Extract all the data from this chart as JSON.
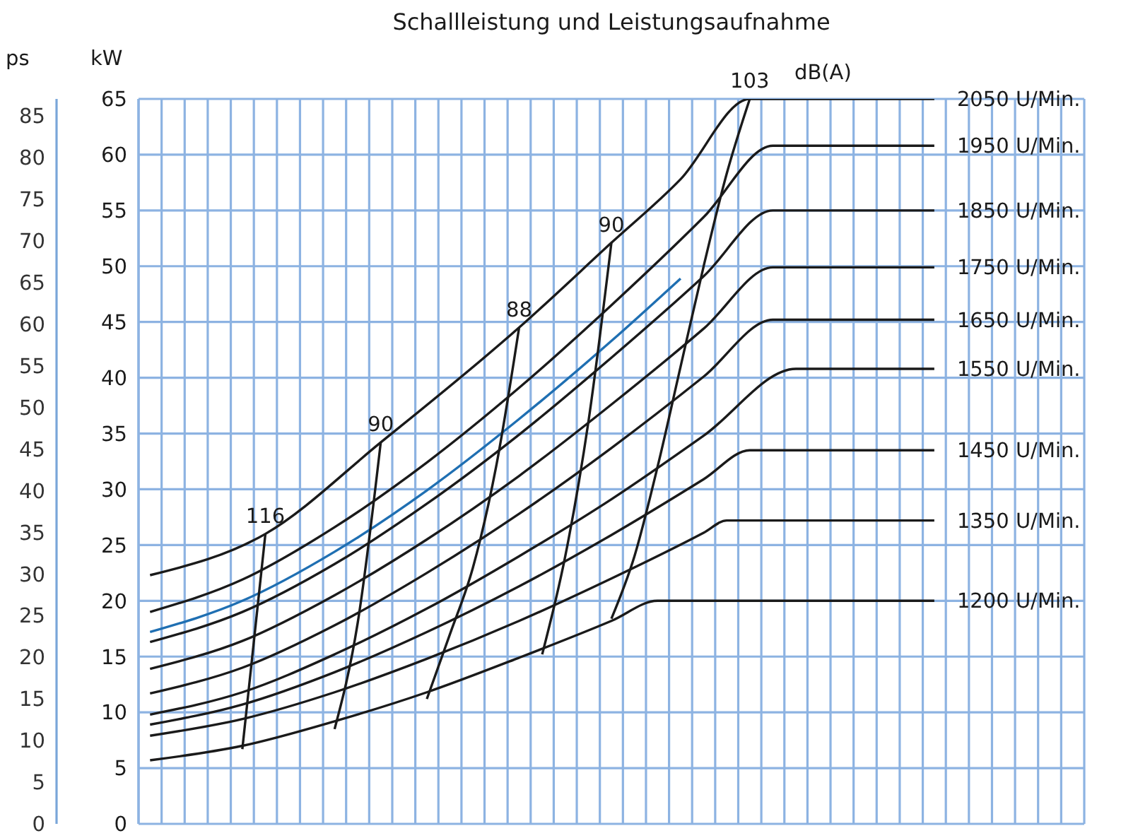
{
  "chart_data": {
    "type": "line",
    "title": "Schallleistung und Leistungsaufnahme",
    "ylabel": "kW",
    "y2label": "ps",
    "annotations": [
      "dB(A)"
    ],
    "categories": [
      null,
      null,
      null,
      null,
      null,
      null,
      null,
      null,
      null,
      null,
      null,
      null,
      null,
      null,
      null,
      null,
      null,
      null,
      null,
      null,
      null,
      null,
      null,
      null,
      null,
      null,
      null,
      null,
      null,
      null,
      null,
      null,
      null,
      null,
      null,
      null,
      null,
      null,
      null,
      null,
      null
    ],
    "series": [
      {
        "name": "2050 U/Min.",
        "color": "#1a1a1a",
        "values": [
          22.3,
          null,
          null,
          null,
          null,
          26,
          null,
          null,
          null,
          null,
          34.2,
          null,
          null,
          null,
          null,
          null,
          44.5,
          null,
          null,
          null,
          52.1,
          null,
          null,
          57.8,
          null,
          null,
          65,
          null,
          null,
          null,
          null,
          null,
          null,
          null,
          65,
          null,
          null,
          null,
          null,
          null,
          null
        ]
      },
      {
        "name": "1950 U/Min.",
        "color": "#1a1a1a",
        "values": [
          19.0,
          null,
          null,
          null,
          21.9,
          null,
          null,
          null,
          26.6,
          null,
          null,
          null,
          32.4,
          null,
          null,
          null,
          39.1,
          null,
          null,
          null,
          46.5,
          null,
          null,
          null,
          54.4,
          null,
          null,
          60.8,
          null,
          null,
          null,
          null,
          null,
          null,
          60.8,
          null,
          null,
          null,
          null,
          null,
          null
        ]
      },
      {
        "name": "1850 U/Min.",
        "color": "#1a1a1a",
        "values": [
          16.3,
          null,
          null,
          null,
          19.0,
          null,
          null,
          null,
          23.3,
          null,
          null,
          null,
          28.7,
          null,
          null,
          null,
          34.9,
          null,
          null,
          null,
          41.8,
          null,
          null,
          null,
          49.1,
          null,
          null,
          55.0,
          null,
          null,
          null,
          null,
          null,
          null,
          55.0,
          null,
          null,
          null,
          null,
          null,
          null
        ]
      },
      {
        "name": "1750 U/Min.",
        "color": "#1a1a1a",
        "values": [
          13.9,
          null,
          null,
          null,
          16.4,
          null,
          null,
          null,
          20.5,
          null,
          null,
          null,
          25.5,
          null,
          null,
          null,
          31.2,
          null,
          null,
          null,
          37.6,
          null,
          null,
          null,
          44.4,
          null,
          null,
          49.9,
          null,
          null,
          null,
          null,
          null,
          null,
          49.9,
          null,
          null,
          null,
          null,
          null,
          null
        ]
      },
      {
        "name": "1650 U/Min.",
        "color": "#1a1a1a",
        "values": [
          11.7,
          null,
          null,
          null,
          14.0,
          null,
          null,
          null,
          17.8,
          null,
          null,
          null,
          22.5,
          null,
          null,
          null,
          27.8,
          null,
          null,
          null,
          33.7,
          null,
          null,
          null,
          40.1,
          null,
          null,
          45.2,
          null,
          null,
          null,
          null,
          null,
          null,
          45.2,
          null,
          null,
          null,
          null,
          null,
          null
        ]
      },
      {
        "name": "1550 U/Min.",
        "color": "#1a1a1a",
        "values": [
          9.8,
          null,
          null,
          null,
          11.8,
          null,
          null,
          null,
          15.2,
          null,
          null,
          null,
          19.3,
          null,
          null,
          null,
          24.0,
          null,
          null,
          null,
          29.1,
          null,
          null,
          null,
          34.8,
          null,
          null,
          null,
          40.8,
          null,
          null,
          null,
          null,
          null,
          40.8,
          null,
          null,
          null,
          null,
          null,
          null
        ]
      },
      {
        "name": "1450 U/Min.",
        "color": "#1a1a1a",
        "values": [
          8.9,
          null,
          null,
          null,
          10.7,
          null,
          null,
          null,
          13.6,
          null,
          null,
          null,
          17.2,
          null,
          null,
          null,
          21.3,
          null,
          null,
          null,
          25.9,
          null,
          null,
          null,
          30.9,
          null,
          33.5,
          null,
          null,
          null,
          null,
          null,
          null,
          null,
          33.5,
          null,
          null,
          null,
          null,
          null,
          null
        ]
      },
      {
        "name": "1350 U/Min.",
        "color": "#1a1a1a",
        "values": [
          7.9,
          null,
          null,
          null,
          9.4,
          null,
          null,
          null,
          11.8,
          null,
          null,
          null,
          14.8,
          null,
          null,
          null,
          18.2,
          null,
          null,
          null,
          22.0,
          null,
          null,
          null,
          26.1,
          27.2,
          null,
          null,
          null,
          null,
          null,
          null,
          null,
          null,
          27.2,
          null,
          null,
          null,
          null,
          null,
          null
        ]
      },
      {
        "name": "1200 U/Min.",
        "color": "#1a1a1a",
        "values": [
          5.7,
          null,
          null,
          null,
          7.0,
          null,
          null,
          null,
          9.2,
          null,
          null,
          null,
          11.8,
          null,
          null,
          null,
          14.9,
          null,
          null,
          null,
          18.2,
          null,
          20,
          null,
          null,
          null,
          null,
          null,
          null,
          null,
          null,
          null,
          null,
          null,
          20,
          null,
          null,
          null,
          null,
          null,
          null
        ]
      },
      {
        "color": "#1f6fb2",
        "values": [
          17.2,
          null,
          null,
          null,
          20.0,
          null,
          null,
          null,
          24.4,
          null,
          null,
          null,
          29.9,
          null,
          null,
          null,
          36.3,
          null,
          null,
          null,
          43.3,
          null,
          null,
          48.9,
          null,
          null,
          null,
          null,
          null,
          null,
          null,
          null,
          null,
          null,
          null,
          null,
          null,
          null,
          null,
          null,
          null
        ]
      },
      {
        "name": "116",
        "color": "#1a1a1a",
        "values": [
          null,
          null,
          null,
          null,
          6.7,
          26.0,
          null,
          null,
          null,
          null,
          null,
          null,
          null,
          null,
          null,
          null,
          null,
          null,
          null,
          null,
          null,
          null,
          null,
          null,
          null,
          null,
          null,
          null,
          null,
          null,
          null,
          null,
          null,
          null,
          null,
          null,
          null,
          null,
          null,
          null,
          null
        ]
      },
      {
        "name": "90",
        "color": "#1a1a1a",
        "values": [
          null,
          null,
          null,
          null,
          null,
          null,
          null,
          null,
          8.5,
          18,
          34.2,
          null,
          null,
          null,
          null,
          null,
          null,
          null,
          null,
          null,
          null,
          null,
          null,
          null,
          null,
          null,
          null,
          null,
          null,
          null,
          null,
          null,
          null,
          null,
          null,
          null,
          null,
          null,
          null,
          null,
          null
        ]
      },
      {
        "name": "88",
        "color": "#1a1a1a",
        "values": [
          null,
          null,
          null,
          null,
          null,
          null,
          null,
          null,
          null,
          null,
          null,
          null,
          11.2,
          17,
          23,
          32,
          44.5,
          null,
          null,
          null,
          null,
          null,
          null,
          null,
          null,
          null,
          null,
          null,
          null,
          null,
          null,
          null,
          null,
          null,
          null,
          null,
          null,
          null,
          null,
          null,
          null
        ]
      },
      {
        "name": "90",
        "color": "#1a1a1a",
        "values": [
          null,
          null,
          null,
          null,
          null,
          null,
          null,
          null,
          null,
          null,
          null,
          null,
          null,
          null,
          null,
          null,
          null,
          15.2,
          24,
          36,
          52.1,
          null,
          null,
          null,
          null,
          null,
          null,
          null,
          null,
          null,
          null,
          null,
          null,
          null,
          null,
          null,
          null,
          null,
          null,
          null,
          null
        ]
      },
      {
        "name": "103",
        "color": "#1a1a1a",
        "values": [
          null,
          null,
          null,
          null,
          null,
          null,
          null,
          null,
          null,
          null,
          null,
          null,
          null,
          null,
          null,
          null,
          null,
          null,
          null,
          null,
          18.4,
          24,
          32,
          41,
          50,
          58.3,
          65,
          null,
          null,
          null,
          null,
          null,
          null,
          null,
          null,
          null,
          null,
          null,
          null,
          null,
          null
        ]
      }
    ],
    "ylim": [
      0,
      65
    ],
    "yticks": [
      0,
      5,
      10,
      15,
      20,
      25,
      30,
      35,
      40,
      45,
      50,
      55,
      60,
      65
    ],
    "y2lim": [
      0,
      87
    ],
    "y2ticks": [
      0,
      5,
      10,
      15,
      20,
      25,
      30,
      35,
      40,
      45,
      50,
      55,
      60,
      65,
      70,
      75,
      80,
      85
    ],
    "grid": true,
    "tick_labels": "y"
  }
}
